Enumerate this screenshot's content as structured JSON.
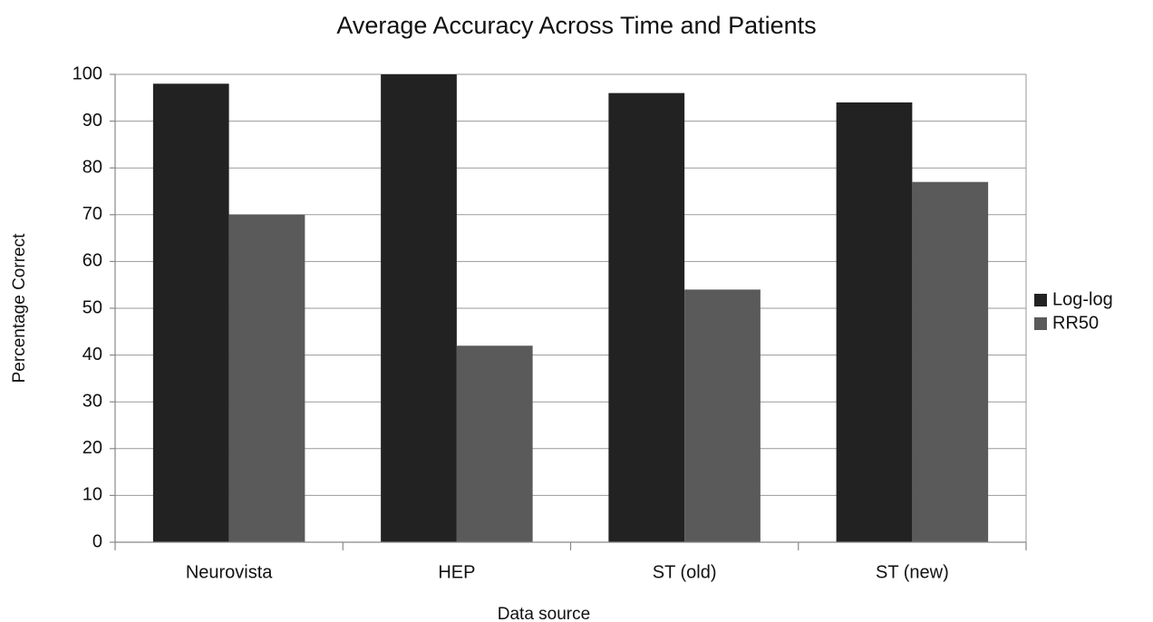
{
  "chart_data": {
    "type": "bar",
    "title": "Average Accuracy Across Time and Patients",
    "x_label": "Data source",
    "y_label": "Percentage Correct",
    "categories": [
      "Neurovista",
      "HEP",
      "ST (old)",
      "ST (new)"
    ],
    "series": [
      {
        "name": "Log-log",
        "color": "#222222",
        "values": [
          98,
          100,
          96,
          94
        ]
      },
      {
        "name": "RR50",
        "color": "#5a5a5a",
        "values": [
          70,
          42,
          54,
          77
        ]
      }
    ],
    "ylim": [
      0,
      100
    ],
    "yticks": [
      0,
      10,
      20,
      30,
      40,
      50,
      60,
      70,
      80,
      90,
      100
    ],
    "grid": true,
    "legend": "right"
  }
}
